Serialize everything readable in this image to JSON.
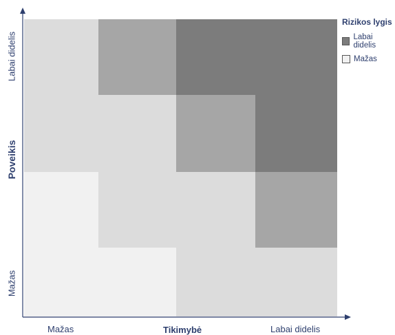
{
  "matrix": {
    "colors": {
      "very_light": "#f1f1f1",
      "light": "#dcdcdc",
      "medium": "#a6a6a6",
      "dark": "#7c7c7c"
    },
    "rows": [
      [
        "light",
        "medium",
        "dark",
        "dark"
      ],
      [
        "light",
        "light",
        "medium",
        "dark"
      ],
      [
        "very_light",
        "light",
        "light",
        "medium"
      ],
      [
        "very_light",
        "very_light",
        "light",
        "light"
      ]
    ]
  },
  "y_axis": {
    "title": "Poveikis",
    "high_label": "Labai didelis",
    "low_label": "Mažas"
  },
  "x_axis": {
    "title": "Tikimybė",
    "low_label": "Mažas",
    "high_label": "Labai didelis"
  },
  "legend": {
    "title": "Rizikos lygis",
    "items": [
      {
        "label": "Labai didelis",
        "color": "#7c7c7c"
      },
      {
        "label": "Mažas",
        "color": "#f1f1f1"
      }
    ]
  },
  "axis_color": "#2e3f6e"
}
